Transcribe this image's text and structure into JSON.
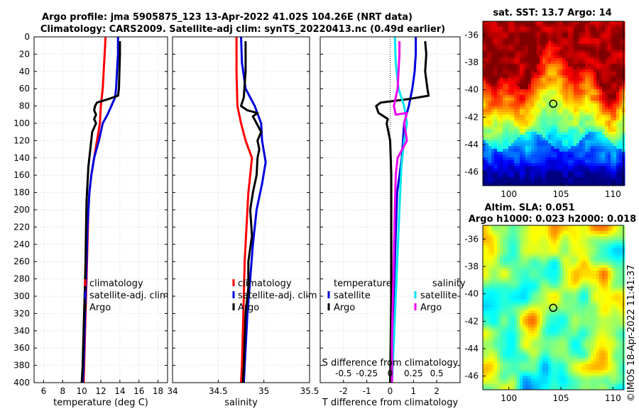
{
  "figure": {
    "title_line1": "Argo profile: jma 5905875_123 13-Apr-2022 41.02S 104.26E (NRT data)",
    "title_line2": "Climatology: CARS2009. Satellite-adj clim: synTS_20220413.nc (0.49d earlier)",
    "watermark": "©IMOS 18-Apr-2022 11:41:37"
  },
  "chart_data": [
    {
      "type": "line",
      "name": "temperature-profile",
      "xlabel": "temperature (deg C)",
      "ylabel": "",
      "xlim": [
        5,
        19
      ],
      "ylim": [
        400,
        0
      ],
      "xticks": [
        6,
        8,
        10,
        12,
        14,
        16,
        18
      ],
      "yticks": [
        0,
        20,
        40,
        60,
        80,
        100,
        120,
        140,
        160,
        180,
        200,
        220,
        240,
        260,
        280,
        300,
        320,
        340,
        360,
        380,
        400
      ],
      "grid": true,
      "legend": [
        "climatology",
        "satellite-adj. clim",
        "Argo"
      ],
      "series": [
        {
          "name": "climatology",
          "color": "#ff0000",
          "points": [
            [
              12.5,
              0
            ],
            [
              12.4,
              20
            ],
            [
              12.3,
              40
            ],
            [
              12.2,
              60
            ],
            [
              12.0,
              80
            ],
            [
              11.9,
              100
            ],
            [
              11.6,
              120
            ],
            [
              11.3,
              140
            ],
            [
              11.0,
              160
            ],
            [
              10.8,
              180
            ],
            [
              10.7,
              200
            ],
            [
              10.6,
              240
            ],
            [
              10.5,
              280
            ],
            [
              10.4,
              320
            ],
            [
              10.3,
              360
            ],
            [
              10.2,
              400
            ]
          ]
        },
        {
          "name": "satellite-adj. clim",
          "color": "#0000dd",
          "points": [
            [
              13.8,
              0
            ],
            [
              13.8,
              20
            ],
            [
              13.7,
              40
            ],
            [
              13.6,
              60
            ],
            [
              13.5,
              70
            ],
            [
              13.1,
              80
            ],
            [
              12.7,
              90
            ],
            [
              12.2,
              100
            ],
            [
              11.8,
              120
            ],
            [
              11.3,
              140
            ],
            [
              11.0,
              160
            ],
            [
              10.8,
              180
            ],
            [
              10.6,
              220
            ],
            [
              10.5,
              260
            ],
            [
              10.4,
              300
            ],
            [
              10.3,
              340
            ],
            [
              10.2,
              380
            ],
            [
              10.1,
              400
            ]
          ]
        },
        {
          "name": "Argo",
          "color": "#000000",
          "points": [
            [
              14.0,
              5
            ],
            [
              14.0,
              20
            ],
            [
              13.95,
              40
            ],
            [
              13.9,
              60
            ],
            [
              13.8,
              68
            ],
            [
              12.8,
              72
            ],
            [
              11.6,
              76
            ],
            [
              11.4,
              80
            ],
            [
              11.3,
              85
            ],
            [
              11.5,
              90
            ],
            [
              11.3,
              95
            ],
            [
              11.5,
              100
            ],
            [
              11.1,
              110
            ],
            [
              10.9,
              130
            ],
            [
              10.7,
              150
            ],
            [
              10.6,
              170
            ],
            [
              10.5,
              190
            ],
            [
              10.45,
              220
            ],
            [
              10.4,
              260
            ],
            [
              10.3,
              300
            ],
            [
              10.2,
              340
            ],
            [
              10.1,
              380
            ],
            [
              10.0,
              400
            ]
          ]
        }
      ]
    },
    {
      "type": "line",
      "name": "salinity-profile",
      "xlabel": "salinity",
      "xlim": [
        34,
        35.5
      ],
      "ylim": [
        400,
        0
      ],
      "xticks": [
        34,
        34.5,
        35,
        35.5
      ],
      "grid": true,
      "legend": [
        "climatology",
        "satellite-adj. clim",
        "Argo"
      ],
      "series": [
        {
          "name": "climatology",
          "color": "#ff0000",
          "points": [
            [
              34.7,
              0
            ],
            [
              34.7,
              40
            ],
            [
              34.71,
              80
            ],
            [
              34.75,
              100
            ],
            [
              34.8,
              120
            ],
            [
              34.87,
              140
            ],
            [
              34.85,
              160
            ],
            [
              34.83,
              180
            ],
            [
              34.81,
              220
            ],
            [
              34.79,
              260
            ],
            [
              34.78,
              300
            ],
            [
              34.77,
              340
            ],
            [
              34.76,
              380
            ],
            [
              34.75,
              400
            ]
          ]
        },
        {
          "name": "satellite-adj. clim",
          "color": "#0000dd",
          "points": [
            [
              34.75,
              0
            ],
            [
              34.76,
              30
            ],
            [
              34.8,
              60
            ],
            [
              34.9,
              80
            ],
            [
              34.97,
              100
            ],
            [
              34.98,
              120
            ],
            [
              35.02,
              145
            ],
            [
              34.98,
              170
            ],
            [
              34.92,
              200
            ],
            [
              34.88,
              240
            ],
            [
              34.85,
              280
            ],
            [
              34.82,
              320
            ],
            [
              34.8,
              360
            ],
            [
              34.78,
              400
            ]
          ]
        },
        {
          "name": "Argo",
          "color": "#000000",
          "points": [
            [
              34.8,
              5
            ],
            [
              34.8,
              20
            ],
            [
              34.8,
              40
            ],
            [
              34.79,
              55
            ],
            [
              34.78,
              70
            ],
            [
              34.75,
              80
            ],
            [
              34.82,
              85
            ],
            [
              34.93,
              88
            ],
            [
              34.88,
              92
            ],
            [
              34.92,
              100
            ],
            [
              34.97,
              110
            ],
            [
              34.93,
              120
            ],
            [
              34.95,
              130
            ],
            [
              34.93,
              140
            ],
            [
              34.92,
              160
            ],
            [
              34.88,
              180
            ],
            [
              34.85,
              200
            ],
            [
              34.87,
              230
            ],
            [
              34.83,
              260
            ],
            [
              34.83,
              290
            ],
            [
              34.8,
              320
            ],
            [
              34.79,
              350
            ],
            [
              34.78,
              380
            ],
            [
              34.77,
              400
            ]
          ]
        }
      ]
    },
    {
      "type": "line",
      "name": "difference-profile",
      "xlabel": "T difference from climatology",
      "x2label": "S difference from climatology",
      "xlim": [
        -3,
        3
      ],
      "ylim": [
        400,
        0
      ],
      "xticks": [
        -2,
        -1,
        0,
        1,
        2
      ],
      "x2lim": [
        -0.75,
        0.75
      ],
      "x2ticks": [
        -0.5,
        -0.25,
        0,
        0.25,
        0.5
      ],
      "x2ticklabels": [
        "-0.5",
        "-0.25",
        "0",
        "0.25",
        "0.5"
      ],
      "grid": true,
      "legend_temperature_title": "temperature",
      "legend_salinity_title": "salinity",
      "legend_temperature": [
        "satellite",
        "Argo"
      ],
      "legend_salinity": [
        "satellite",
        "Argo"
      ],
      "series": [
        {
          "name": "temperature satellite",
          "color": "#0000dd",
          "points": [
            [
              1.1,
              0
            ],
            [
              1.1,
              20
            ],
            [
              1.05,
              40
            ],
            [
              0.95,
              60
            ],
            [
              0.8,
              80
            ],
            [
              0.6,
              100
            ],
            [
              0.55,
              120
            ],
            [
              0.5,
              140
            ],
            [
              0.3,
              180
            ],
            [
              0.25,
              220
            ],
            [
              0.2,
              260
            ],
            [
              0.15,
              300
            ],
            [
              0.1,
              340
            ],
            [
              0.05,
              380
            ],
            [
              0.0,
              400
            ]
          ]
        },
        {
          "name": "temperature Argo",
          "color": "#000000",
          "points": [
            [
              1.5,
              5
            ],
            [
              1.55,
              20
            ],
            [
              1.5,
              40
            ],
            [
              1.6,
              60
            ],
            [
              1.65,
              68
            ],
            [
              0.8,
              72
            ],
            [
              -0.4,
              76
            ],
            [
              -0.6,
              80
            ],
            [
              -0.5,
              88
            ],
            [
              -0.1,
              95
            ],
            [
              -0.15,
              100
            ],
            [
              0.0,
              120
            ],
            [
              0.05,
              160
            ],
            [
              0.05,
              220
            ],
            [
              0.05,
              300
            ],
            [
              0.0,
              400
            ]
          ]
        },
        {
          "name": "salinity satellite",
          "color": "#00e5ee",
          "points": [
            [
              0.05,
              0
            ],
            [
              0.06,
              30
            ],
            [
              0.09,
              60
            ],
            [
              0.15,
              80
            ],
            [
              0.18,
              100
            ],
            [
              0.15,
              120
            ],
            [
              0.12,
              150
            ],
            [
              0.1,
              200
            ],
            [
              0.08,
              250
            ],
            [
              0.06,
              300
            ],
            [
              0.04,
              350
            ],
            [
              0.02,
              400
            ]
          ]
        },
        {
          "name": "salinity Argo",
          "color": "#ee00ee",
          "points": [
            [
              0.1,
              5
            ],
            [
              0.1,
              20
            ],
            [
              0.09,
              40
            ],
            [
              0.08,
              60
            ],
            [
              0.04,
              80
            ],
            [
              0.06,
              90
            ],
            [
              0.18,
              88
            ],
            [
              0.15,
              100
            ],
            [
              0.18,
              120
            ],
            [
              0.08,
              140
            ],
            [
              0.06,
              160
            ],
            [
              0.05,
              200
            ],
            [
              0.04,
              250
            ],
            [
              0.03,
              300
            ],
            [
              0.02,
              350
            ],
            [
              0.02,
              400
            ]
          ]
        }
      ]
    },
    {
      "type": "heatmap",
      "name": "sst-map",
      "title": "sat. SST: 13.7 Argo: 14",
      "xlim": [
        97.5,
        111
      ],
      "ylim": [
        -47,
        -35
      ],
      "xticks": [
        100,
        105,
        110
      ],
      "yticks": [
        -36,
        -38,
        -40,
        -42,
        -44,
        -46
      ],
      "marker": [
        104.26,
        -41.02
      ]
    },
    {
      "type": "heatmap",
      "name": "sla-map",
      "title_line1": "Altim. SLA: 0.051",
      "title_line2": "Argo h1000: 0.023 h2000: 0.018",
      "xlim": [
        97.5,
        111
      ],
      "ylim": [
        -47,
        -35
      ],
      "xticks": [
        100,
        105,
        110
      ],
      "yticks": [
        -36,
        -38,
        -40,
        -42,
        -44,
        -46
      ],
      "marker": [
        104.26,
        -41.02
      ]
    }
  ]
}
